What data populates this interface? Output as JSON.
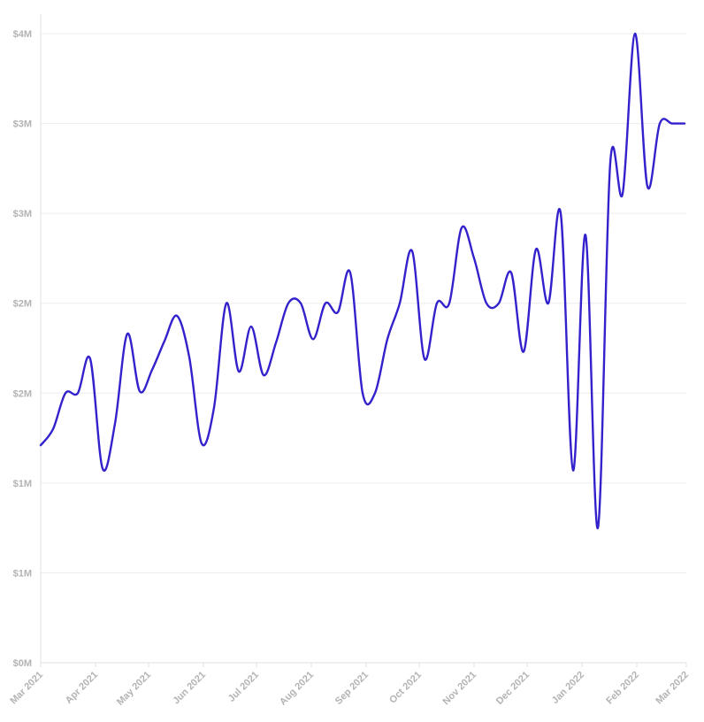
{
  "chart_data": {
    "type": "line",
    "title": "",
    "xlabel": "",
    "ylabel": "",
    "xlim": [
      "2021-03-01",
      "2022-03-01"
    ],
    "ylim": [
      0,
      3500000
    ],
    "x_tick_labels": [
      "Mar 2021",
      "Apr 2021",
      "May 2021",
      "Jun 2021",
      "Jul 2021",
      "Aug 2021",
      "Sep 2021",
      "Oct 2021",
      "Nov 2021",
      "Dec 2021",
      "Jan 2022",
      "Feb 2022",
      "Mar 2022"
    ],
    "y_tick_labels": [
      "$0M",
      "$1M",
      "$1M",
      "$2M",
      "$2M",
      "$3M",
      "$3M",
      "$4M"
    ],
    "grid": true,
    "line_color": "#3322cc",
    "series": [
      {
        "x": [
          "2021-03-01",
          "2021-03-08",
          "2021-03-15",
          "2021-03-22",
          "2021-03-29",
          "2021-04-05",
          "2021-04-12",
          "2021-04-19",
          "2021-04-26",
          "2021-05-03",
          "2021-05-10",
          "2021-05-17",
          "2021-05-24",
          "2021-05-31",
          "2021-06-07",
          "2021-06-14",
          "2021-06-21",
          "2021-06-28",
          "2021-07-05",
          "2021-07-12",
          "2021-07-19",
          "2021-07-26",
          "2021-08-02",
          "2021-08-09",
          "2021-08-16",
          "2021-08-23",
          "2021-08-30",
          "2021-09-06",
          "2021-09-13",
          "2021-09-20",
          "2021-09-27",
          "2021-10-04",
          "2021-10-11",
          "2021-10-18",
          "2021-10-25",
          "2021-11-01",
          "2021-11-08",
          "2021-11-15",
          "2021-11-22",
          "2021-11-29",
          "2021-12-06",
          "2021-12-13",
          "2021-12-20",
          "2021-12-27",
          "2022-01-03",
          "2022-01-10",
          "2022-01-17",
          "2022-01-24",
          "2022-01-31",
          "2022-02-07",
          "2022-02-14",
          "2022-02-21",
          "2022-02-28"
        ],
        "values": [
          1210000,
          1300000,
          1500000,
          1500000,
          1690000,
          1080000,
          1330000,
          1830000,
          1510000,
          1630000,
          1790000,
          1930000,
          1700000,
          1220000,
          1420000,
          2000000,
          1620000,
          1870000,
          1600000,
          1780000,
          2000000,
          2000000,
          1800000,
          2000000,
          1950000,
          2170000,
          1500000,
          1500000,
          1800000,
          2000000,
          2290000,
          1690000,
          2000000,
          2000000,
          2420000,
          2250000,
          2000000,
          2000000,
          2170000,
          1730000,
          2300000,
          2000000,
          2500000,
          1070000,
          2380000,
          750000,
          2780000,
          2610000,
          3500000,
          2650000,
          3000000,
          3000000,
          3000000
        ]
      }
    ]
  }
}
